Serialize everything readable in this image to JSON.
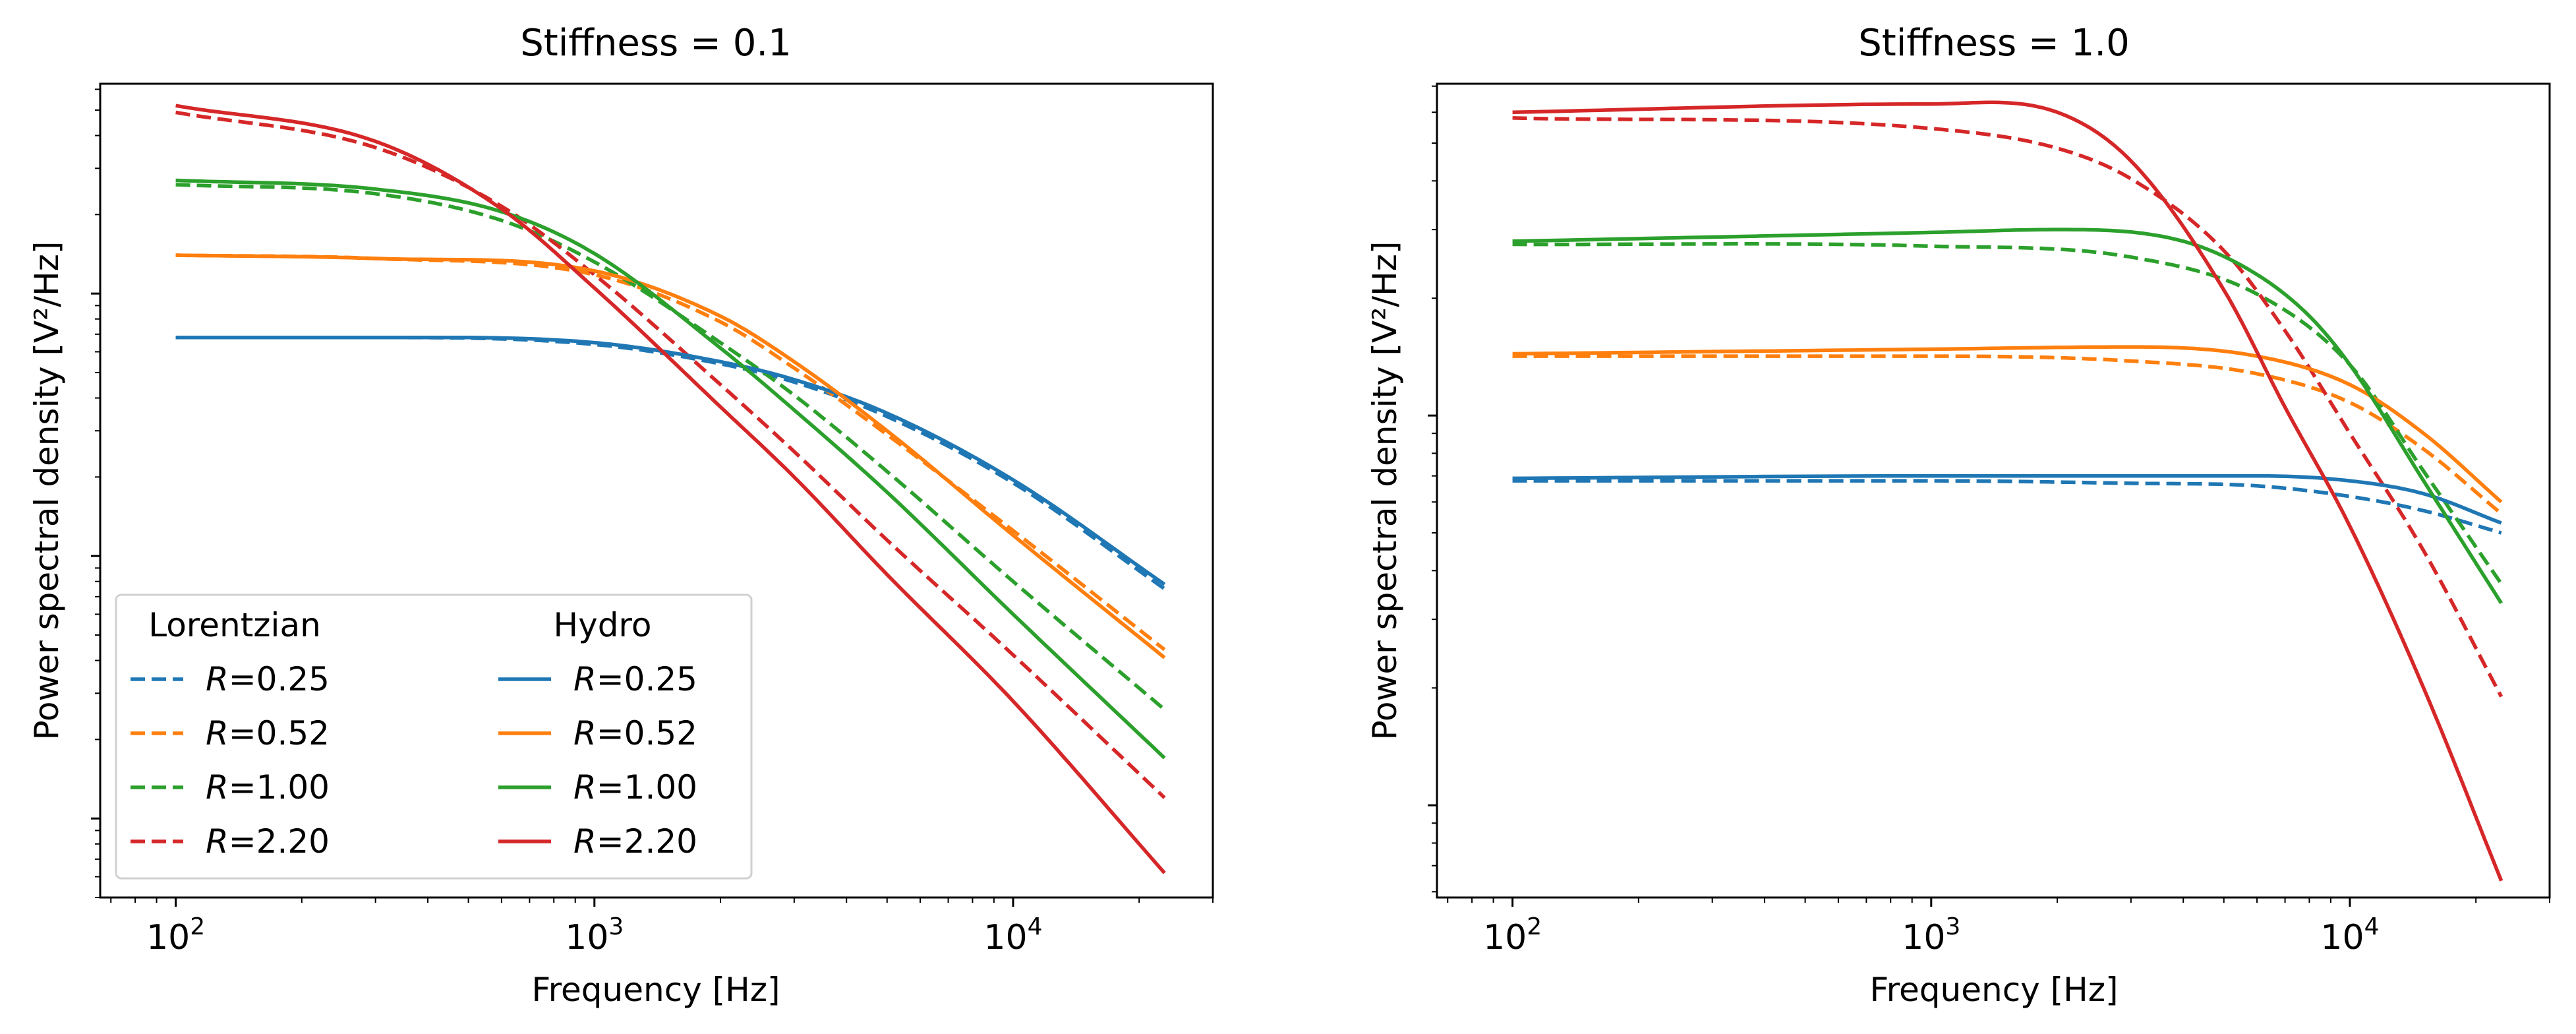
{
  "chart_data": [
    {
      "type": "line",
      "title": "Stiffness = 0.1",
      "xlabel": "Frequency [Hz]",
      "ylabel": "Power spectral density [V²/Hz]",
      "xscale": "log",
      "yscale": "log",
      "xlim": [
        66,
        30000
      ],
      "xticks": [
        {
          "value": 100,
          "label": "10^2"
        },
        {
          "value": 1000,
          "label": "10^3"
        },
        {
          "value": 10000,
          "label": "10^4"
        }
      ],
      "y_tick_labels_shown": false,
      "legend": {
        "placement": "lower-left",
        "columns": [
          {
            "title": "Lorentzian"
          },
          {
            "title": "Hydro"
          }
        ]
      },
      "series": [
        {
          "name": "R=0.25",
          "group": "Lorentzian",
          "dash": "dashed",
          "color": "#1f77b4",
          "x": [
            100,
            300,
            1000,
            2000,
            3000,
            5000,
            10000,
            23000
          ],
          "y": [
            6.8,
            6.8,
            6.4,
            5.4,
            4.6,
            3.4,
            1.9,
            0.75
          ]
        },
        {
          "name": "R=0.52",
          "group": "Lorentzian",
          "dash": "dashed",
          "color": "#ff7f0e",
          "x": [
            100,
            300,
            1000,
            2000,
            3000,
            5000,
            10000,
            23000
          ],
          "y": [
            14.0,
            13.6,
            11.8,
            7.8,
            5.2,
            2.9,
            1.25,
            0.44
          ]
        },
        {
          "name": "R=1.00",
          "group": "Lorentzian",
          "dash": "dashed",
          "color": "#2ca02c",
          "x": [
            100,
            300,
            600,
            1000,
            2000,
            3000,
            5000,
            10000,
            23000
          ],
          "y": [
            26.0,
            24.0,
            19.0,
            13.2,
            6.5,
            4.1,
            2.1,
            0.8,
            0.26
          ]
        },
        {
          "name": "R=2.20",
          "group": "Lorentzian",
          "dash": "dashed",
          "color": "#d62728",
          "x": [
            100,
            300,
            600,
            1000,
            2000,
            3000,
            5000,
            10000,
            23000
          ],
          "y": [
            49.0,
            36.0,
            21.5,
            11.8,
            4.5,
            2.5,
            1.15,
            0.42,
            0.12
          ]
        },
        {
          "name": "R=0.25",
          "group": "Hydro",
          "dash": "solid",
          "color": "#1f77b4",
          "x": [
            100,
            300,
            1000,
            2000,
            3000,
            5000,
            10000,
            23000
          ],
          "y": [
            6.8,
            6.8,
            6.5,
            5.5,
            4.7,
            3.5,
            1.95,
            0.78
          ]
        },
        {
          "name": "R=0.52",
          "group": "Hydro",
          "dash": "solid",
          "color": "#ff7f0e",
          "x": [
            100,
            300,
            1000,
            2000,
            3000,
            5000,
            10000,
            23000
          ],
          "y": [
            14.0,
            13.6,
            12.2,
            8.2,
            5.5,
            3.0,
            1.2,
            0.41
          ]
        },
        {
          "name": "R=1.00",
          "group": "Hydro",
          "dash": "solid",
          "color": "#2ca02c",
          "x": [
            100,
            300,
            600,
            1000,
            2000,
            3000,
            5000,
            10000,
            23000
          ],
          "y": [
            27.0,
            25.0,
            20.5,
            14.2,
            6.2,
            3.6,
            1.75,
            0.6,
            0.17
          ]
        },
        {
          "name": "R=2.20",
          "group": "Hydro",
          "dash": "solid",
          "color": "#d62728",
          "x": [
            100,
            300,
            600,
            1000,
            2000,
            3000,
            5000,
            10000,
            23000
          ],
          "y": [
            52.0,
            38.0,
            21.0,
            10.5,
            3.7,
            2.0,
            0.85,
            0.28,
            0.062
          ]
        }
      ]
    },
    {
      "type": "line",
      "title": "Stiffness = 1.0",
      "xlabel": "Frequency [Hz]",
      "ylabel": "Power spectral density [V²/Hz]",
      "xscale": "log",
      "yscale": "log",
      "xlim": [
        66,
        30000
      ],
      "xticks": [
        {
          "value": 100,
          "label": "10^2"
        },
        {
          "value": 1000,
          "label": "10^3"
        },
        {
          "value": 10000,
          "label": "10^4"
        }
      ],
      "y_tick_labels_shown": false,
      "series": [
        {
          "name": "R=0.25",
          "group": "Lorentzian",
          "dash": "dashed",
          "color": "#1f77b4",
          "x": [
            100,
            1000,
            3000,
            6000,
            10000,
            15000,
            23000
          ],
          "y": [
            0.68,
            0.68,
            0.67,
            0.66,
            0.62,
            0.57,
            0.5
          ]
        },
        {
          "name": "R=0.52",
          "group": "Lorentzian",
          "dash": "dashed",
          "color": "#ff7f0e",
          "x": [
            100,
            1000,
            3000,
            6000,
            10000,
            15000,
            23000
          ],
          "y": [
            1.42,
            1.42,
            1.38,
            1.28,
            1.08,
            0.82,
            0.56
          ]
        },
        {
          "name": "R=1.00",
          "group": "Lorentzian",
          "dash": "dashed",
          "color": "#2ca02c",
          "x": [
            100,
            1000,
            3000,
            6000,
            10000,
            15000,
            23000
          ],
          "y": [
            2.75,
            2.72,
            2.55,
            2.05,
            1.35,
            0.72,
            0.37
          ]
        },
        {
          "name": "R=2.20",
          "group": "Lorentzian",
          "dash": "dashed",
          "color": "#d62728",
          "x": [
            100,
            1000,
            2000,
            3000,
            5000,
            7000,
            10000,
            15000,
            23000
          ],
          "y": [
            5.8,
            5.45,
            4.85,
            4.05,
            2.65,
            1.65,
            0.9,
            0.45,
            0.19
          ]
        },
        {
          "name": "R=0.25",
          "group": "Hydro",
          "dash": "solid",
          "color": "#1f77b4",
          "x": [
            100,
            1000,
            3000,
            6000,
            10000,
            15000,
            23000
          ],
          "y": [
            0.69,
            0.7,
            0.7,
            0.7,
            0.68,
            0.63,
            0.53
          ]
        },
        {
          "name": "R=0.52",
          "group": "Hydro",
          "dash": "solid",
          "color": "#ff7f0e",
          "x": [
            100,
            1000,
            3000,
            6000,
            10000,
            15000,
            23000
          ],
          "y": [
            1.44,
            1.48,
            1.5,
            1.42,
            1.2,
            0.9,
            0.6
          ]
        },
        {
          "name": "R=1.00",
          "group": "Hydro",
          "dash": "solid",
          "color": "#2ca02c",
          "x": [
            100,
            1000,
            2000,
            4000,
            6000,
            8000,
            10000,
            15000,
            23000
          ],
          "y": [
            2.8,
            2.95,
            3.0,
            2.8,
            2.3,
            1.8,
            1.35,
            0.68,
            0.33
          ]
        },
        {
          "name": "R=2.20",
          "group": "Hydro",
          "dash": "solid",
          "color": "#d62728",
          "x": [
            100,
            1000,
            2000,
            3000,
            5000,
            7000,
            10000,
            15000,
            23000
          ],
          "y": [
            6.0,
            6.3,
            6.0,
            4.5,
            2.1,
            1.05,
            0.52,
            0.2,
            0.064
          ]
        }
      ]
    }
  ]
}
